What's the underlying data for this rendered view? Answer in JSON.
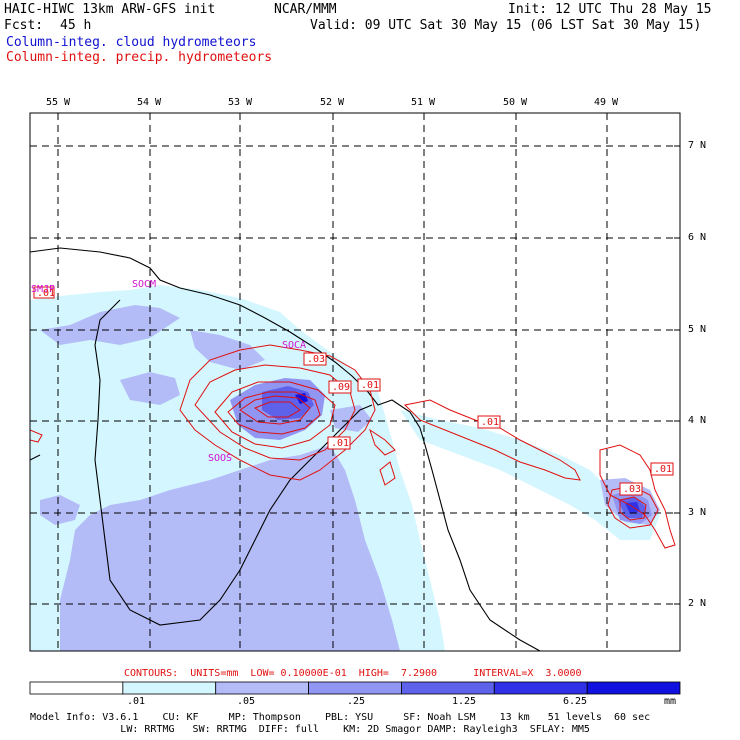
{
  "header": {
    "model_title": "HAIC-HIWC 13km ARW-GFS init",
    "org": "NCAR/MMM",
    "init": "Init: 12 UTC Thu 28 May 15",
    "fcst_label": "Fcst:",
    "fcst_value": "45 h",
    "valid": "Valid: 09 UTC Sat 30 May 15 (06 LST Sat 30 May 15)",
    "field_cloud": "Column-integ. cloud hydrometeors",
    "field_precip": "Column-integ. precip. hydrometeors"
  },
  "map": {
    "lon_labels": [
      "55 W",
      "54 W",
      "53 W",
      "52 W",
      "51 W",
      "50 W",
      "49 W"
    ],
    "lat_labels": [
      "7 N",
      "6 N",
      "5 N",
      "4 N",
      "3 N",
      "2 N"
    ],
    "stations": [
      {
        "id": "SMJP"
      },
      {
        "id": "SOCM"
      },
      {
        "id": "SOCA"
      },
      {
        "id": "SOOS"
      }
    ],
    "contour_labels": [
      {
        "text": ".01",
        "group": "west"
      },
      {
        "text": ".03",
        "group": "socа"
      },
      {
        "text": ".09",
        "group": "core"
      },
      {
        "text": ".01",
        "group": "core-east"
      },
      {
        "text": ".01",
        "group": "core-south"
      },
      {
        "text": ".01",
        "group": "amapa"
      },
      {
        "text": ".01",
        "group": "east"
      },
      {
        "text": ".03",
        "group": "east-core"
      }
    ]
  },
  "contour_info": "CONTOURS:  UNITS=mm  LOW= 0.10000E-01  HIGH=  7.2900      INTERVAL=X  3.0000",
  "colorbar": {
    "ticks": [
      ".01",
      ".05",
      ".25",
      "1.25",
      "6.25"
    ],
    "units": "mm",
    "colors": [
      "#ffffff",
      "#d4f7ff",
      "#b4bcf8",
      "#9096f2",
      "#5e62ea",
      "#3030e6",
      "#1010e0"
    ]
  },
  "footer": {
    "line1": "Model Info: V3.6.1    CU: KF     MP: Thompson    PBL: YSU     SF: Noah LSM    13 km   51 levels  60 sec",
    "line2": "               LW: RRTMG   SW: RRTMG  DIFF: full    KM: 2D Smagor DAMP: Rayleigh3  SFLAY: MM5"
  }
}
